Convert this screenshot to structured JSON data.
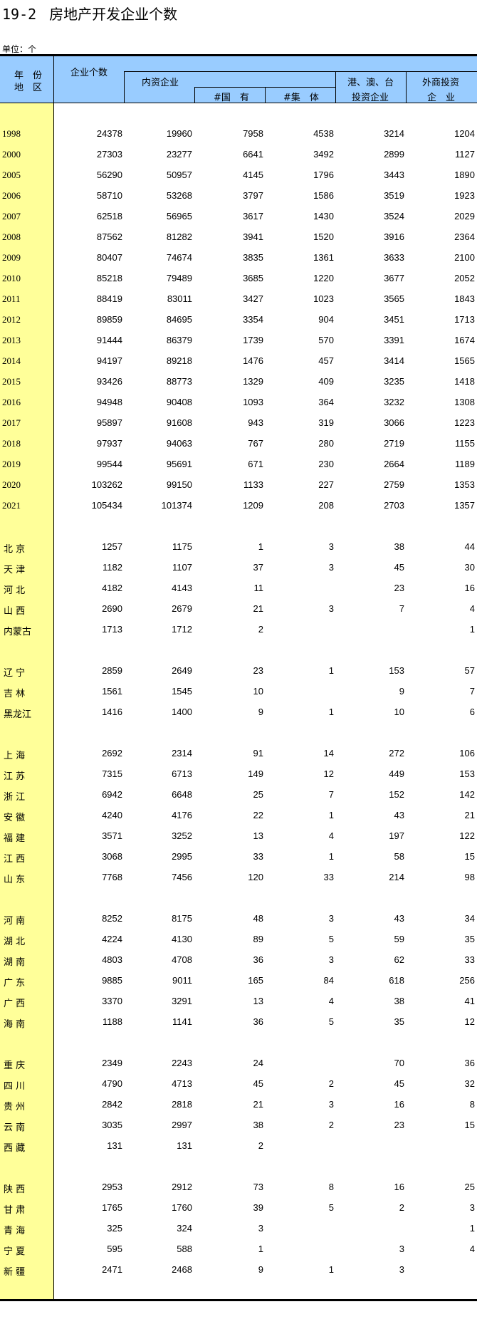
{
  "title": {
    "number": "19-2",
    "text": "房地产开发企业个数"
  },
  "unit": "单位：个",
  "colors": {
    "header_bg": "#99ccff",
    "label_col_bg": "#ffff99"
  },
  "headers": {
    "year_region_1": "年　份",
    "year_region_2": "地　区",
    "total": "企业个数",
    "domestic": "内资企业",
    "state_owned": "#国　有",
    "collective": "#集　体",
    "hmt_1": "港、澳、台",
    "hmt_2": "投资企业",
    "foreign_1": "外商投资",
    "foreign_2": "企　业"
  },
  "groups": [
    {
      "type": "year",
      "rows": [
        [
          "1998",
          "24378",
          "19960",
          "7958",
          "4538",
          "3214",
          "1204"
        ],
        [
          "2000",
          "27303",
          "23277",
          "6641",
          "3492",
          "2899",
          "1127"
        ],
        [
          "2005",
          "56290",
          "50957",
          "4145",
          "1796",
          "3443",
          "1890"
        ],
        [
          "2006",
          "58710",
          "53268",
          "3797",
          "1586",
          "3519",
          "1923"
        ],
        [
          "2007",
          "62518",
          "56965",
          "3617",
          "1430",
          "3524",
          "2029"
        ],
        [
          "2008",
          "87562",
          "81282",
          "3941",
          "1520",
          "3916",
          "2364"
        ],
        [
          "2009",
          "80407",
          "74674",
          "3835",
          "1361",
          "3633",
          "2100"
        ],
        [
          "2010",
          "85218",
          "79489",
          "3685",
          "1220",
          "3677",
          "2052"
        ],
        [
          "2011",
          "88419",
          "83011",
          "3427",
          "1023",
          "3565",
          "1843"
        ],
        [
          "2012",
          "89859",
          "84695",
          "3354",
          "904",
          "3451",
          "1713"
        ],
        [
          "2013",
          "91444",
          "86379",
          "1739",
          "570",
          "3391",
          "1674"
        ],
        [
          "2014",
          "94197",
          "89218",
          "1476",
          "457",
          "3414",
          "1565"
        ],
        [
          "2015",
          "93426",
          "88773",
          "1329",
          "409",
          "3235",
          "1418"
        ],
        [
          "2016",
          "94948",
          "90408",
          "1093",
          "364",
          "3232",
          "1308"
        ],
        [
          "2017",
          "95897",
          "91608",
          "943",
          "319",
          "3066",
          "1223"
        ],
        [
          "2018",
          "97937",
          "94063",
          "767",
          "280",
          "2719",
          "1155"
        ],
        [
          "2019",
          "99544",
          "95691",
          "671",
          "230",
          "2664",
          "1189"
        ],
        [
          "2020",
          "103262",
          "99150",
          "1133",
          "227",
          "2759",
          "1353"
        ],
        [
          "2021",
          "105434",
          "101374",
          "1209",
          "208",
          "2703",
          "1357"
        ]
      ]
    },
    {
      "type": "region",
      "rows": [
        [
          "北 京",
          "1257",
          "1175",
          "1",
          "3",
          "38",
          "44"
        ],
        [
          "天 津",
          "1182",
          "1107",
          "37",
          "3",
          "45",
          "30"
        ],
        [
          "河 北",
          "4182",
          "4143",
          "11",
          "",
          "23",
          "16"
        ],
        [
          "山 西",
          "2690",
          "2679",
          "21",
          "3",
          "7",
          "4"
        ],
        [
          "内蒙古",
          "1713",
          "1712",
          "2",
          "",
          "",
          "1"
        ]
      ]
    },
    {
      "type": "region",
      "rows": [
        [
          "辽 宁",
          "2859",
          "2649",
          "23",
          "1",
          "153",
          "57"
        ],
        [
          "吉 林",
          "1561",
          "1545",
          "10",
          "",
          "9",
          "7"
        ],
        [
          "黑龙江",
          "1416",
          "1400",
          "9",
          "1",
          "10",
          "6"
        ]
      ]
    },
    {
      "type": "region",
      "rows": [
        [
          "上 海",
          "2692",
          "2314",
          "91",
          "14",
          "272",
          "106"
        ],
        [
          "江 苏",
          "7315",
          "6713",
          "149",
          "12",
          "449",
          "153"
        ],
        [
          "浙 江",
          "6942",
          "6648",
          "25",
          "7",
          "152",
          "142"
        ],
        [
          "安 徽",
          "4240",
          "4176",
          "22",
          "1",
          "43",
          "21"
        ],
        [
          "福 建",
          "3571",
          "3252",
          "13",
          "4",
          "197",
          "122"
        ],
        [
          "江 西",
          "3068",
          "2995",
          "33",
          "1",
          "58",
          "15"
        ],
        [
          "山 东",
          "7768",
          "7456",
          "120",
          "33",
          "214",
          "98"
        ]
      ]
    },
    {
      "type": "region",
      "rows": [
        [
          "河 南",
          "8252",
          "8175",
          "48",
          "3",
          "43",
          "34"
        ],
        [
          "湖 北",
          "4224",
          "4130",
          "89",
          "5",
          "59",
          "35"
        ],
        [
          "湖 南",
          "4803",
          "4708",
          "36",
          "3",
          "62",
          "33"
        ],
        [
          "广 东",
          "9885",
          "9011",
          "165",
          "84",
          "618",
          "256"
        ],
        [
          "广 西",
          "3370",
          "3291",
          "13",
          "4",
          "38",
          "41"
        ],
        [
          "海 南",
          "1188",
          "1141",
          "36",
          "5",
          "35",
          "12"
        ]
      ]
    },
    {
      "type": "region",
      "rows": [
        [
          "重 庆",
          "2349",
          "2243",
          "24",
          "",
          "70",
          "36"
        ],
        [
          "四 川",
          "4790",
          "4713",
          "45",
          "2",
          "45",
          "32"
        ],
        [
          "贵 州",
          "2842",
          "2818",
          "21",
          "3",
          "16",
          "8"
        ],
        [
          "云 南",
          "3035",
          "2997",
          "38",
          "2",
          "23",
          "15"
        ],
        [
          "西 藏",
          "131",
          "131",
          "2",
          "",
          "",
          ""
        ]
      ]
    },
    {
      "type": "region",
      "rows": [
        [
          "陕 西",
          "2953",
          "2912",
          "73",
          "8",
          "16",
          "25"
        ],
        [
          "甘 肃",
          "1765",
          "1760",
          "39",
          "5",
          "2",
          "3"
        ],
        [
          "青 海",
          "325",
          "324",
          "3",
          "",
          "",
          "1"
        ],
        [
          "宁 夏",
          "595",
          "588",
          "1",
          "",
          "3",
          "4"
        ],
        [
          "新 疆",
          "2471",
          "2468",
          "9",
          "1",
          "3",
          ""
        ]
      ]
    }
  ]
}
